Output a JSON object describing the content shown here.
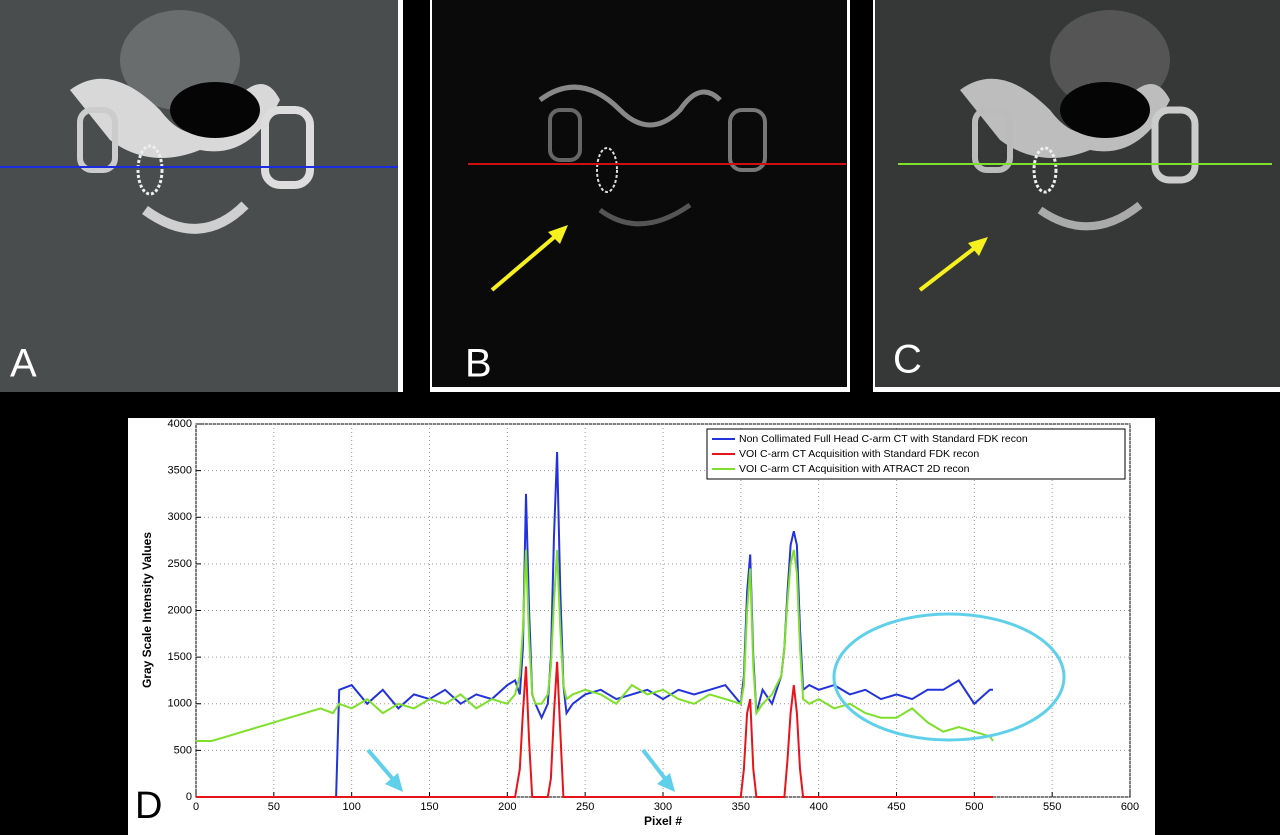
{
  "panels": [
    {
      "label": "A"
    },
    {
      "label": "B"
    },
    {
      "label": "C"
    }
  ],
  "chart_data": {
    "type": "line",
    "panel_label": "D",
    "xlabel": "Pixel #",
    "ylabel": "Gray Scale Intensity Values",
    "x": [
      0,
      10,
      20,
      30,
      40,
      50,
      60,
      70,
      80,
      88,
      90,
      92,
      100,
      110,
      120,
      130,
      140,
      150,
      160,
      170,
      180,
      190,
      200,
      205,
      208,
      210,
      212,
      214,
      216,
      218,
      222,
      226,
      228,
      230,
      232,
      234,
      236,
      238,
      242,
      250,
      260,
      270,
      280,
      290,
      300,
      310,
      320,
      330,
      340,
      350,
      352,
      354,
      356,
      358,
      360,
      364,
      370,
      376,
      378,
      380,
      382,
      384,
      386,
      388,
      390,
      394,
      400,
      410,
      420,
      430,
      440,
      450,
      460,
      470,
      480,
      490,
      500,
      510,
      512
    ],
    "series": [
      {
        "name": "Non Collimated Full Head C-arm CT with Standard FDK recon",
        "color": "#2233dd",
        "values": [
          0,
          0,
          0,
          0,
          0,
          0,
          0,
          0,
          0,
          0,
          0,
          1150,
          1200,
          1000,
          1150,
          950,
          1100,
          1050,
          1150,
          1000,
          1100,
          1050,
          1200,
          1250,
          1100,
          1600,
          3250,
          2000,
          1100,
          1000,
          850,
          1000,
          1500,
          2800,
          3700,
          2200,
          1200,
          900,
          1000,
          1100,
          1150,
          1050,
          1100,
          1150,
          1050,
          1150,
          1100,
          1150,
          1200,
          1000,
          1300,
          2200,
          2600,
          1500,
          900,
          1150,
          1000,
          1300,
          1600,
          2200,
          2700,
          2850,
          2700,
          1800,
          1150,
          1200,
          1150,
          1200,
          1100,
          1150,
          1050,
          1100,
          1050,
          1150,
          1150,
          1250,
          1000,
          1150,
          1150
        ]
      },
      {
        "name": "VOI C-arm CT Acquisition with Standard FDK recon",
        "color": "#e8141b",
        "values": [
          0,
          0,
          0,
          0,
          0,
          0,
          0,
          0,
          0,
          0,
          0,
          0,
          0,
          0,
          0,
          0,
          0,
          0,
          0,
          0,
          0,
          0,
          0,
          0,
          300,
          900,
          1400,
          600,
          0,
          0,
          0,
          0,
          200,
          900,
          1450,
          700,
          0,
          0,
          0,
          0,
          0,
          0,
          0,
          0,
          0,
          0,
          0,
          0,
          0,
          0,
          300,
          900,
          1050,
          300,
          0,
          0,
          0,
          0,
          0,
          400,
          900,
          1200,
          900,
          300,
          0,
          0,
          0,
          0,
          0,
          0,
          0,
          0,
          0,
          0,
          0,
          0,
          0,
          0,
          0
        ]
      },
      {
        "name": "VOI C-arm CT Acquisition with ATRACT 2D recon",
        "color": "#7ee02a",
        "values": [
          600,
          600,
          650,
          700,
          750,
          800,
          850,
          900,
          950,
          900,
          950,
          1000,
          950,
          1050,
          900,
          1000,
          950,
          1050,
          1000,
          1100,
          950,
          1050,
          1000,
          1100,
          1300,
          1800,
          2650,
          1700,
          1100,
          1000,
          1000,
          1100,
          1400,
          2100,
          2650,
          1800,
          1200,
          1050,
          1100,
          1150,
          1100,
          1000,
          1200,
          1100,
          1150,
          1050,
          1000,
          1100,
          1050,
          1000,
          1200,
          2000,
          2450,
          1400,
          900,
          1000,
          1100,
          1300,
          1600,
          2100,
          2500,
          2650,
          2400,
          1600,
          1050,
          1000,
          1050,
          950,
          1000,
          900,
          850,
          850,
          950,
          800,
          700,
          750,
          700,
          650,
          600
        ]
      }
    ],
    "xlim": [
      0,
      600
    ],
    "ylim": [
      0,
      4000
    ],
    "xticks": [
      0,
      50,
      100,
      150,
      200,
      250,
      300,
      350,
      400,
      450,
      500,
      550,
      600
    ],
    "yticks": [
      0,
      500,
      1000,
      1500,
      2000,
      2500,
      3000,
      3500,
      4000
    ],
    "grid": true,
    "legend": "upper right"
  }
}
